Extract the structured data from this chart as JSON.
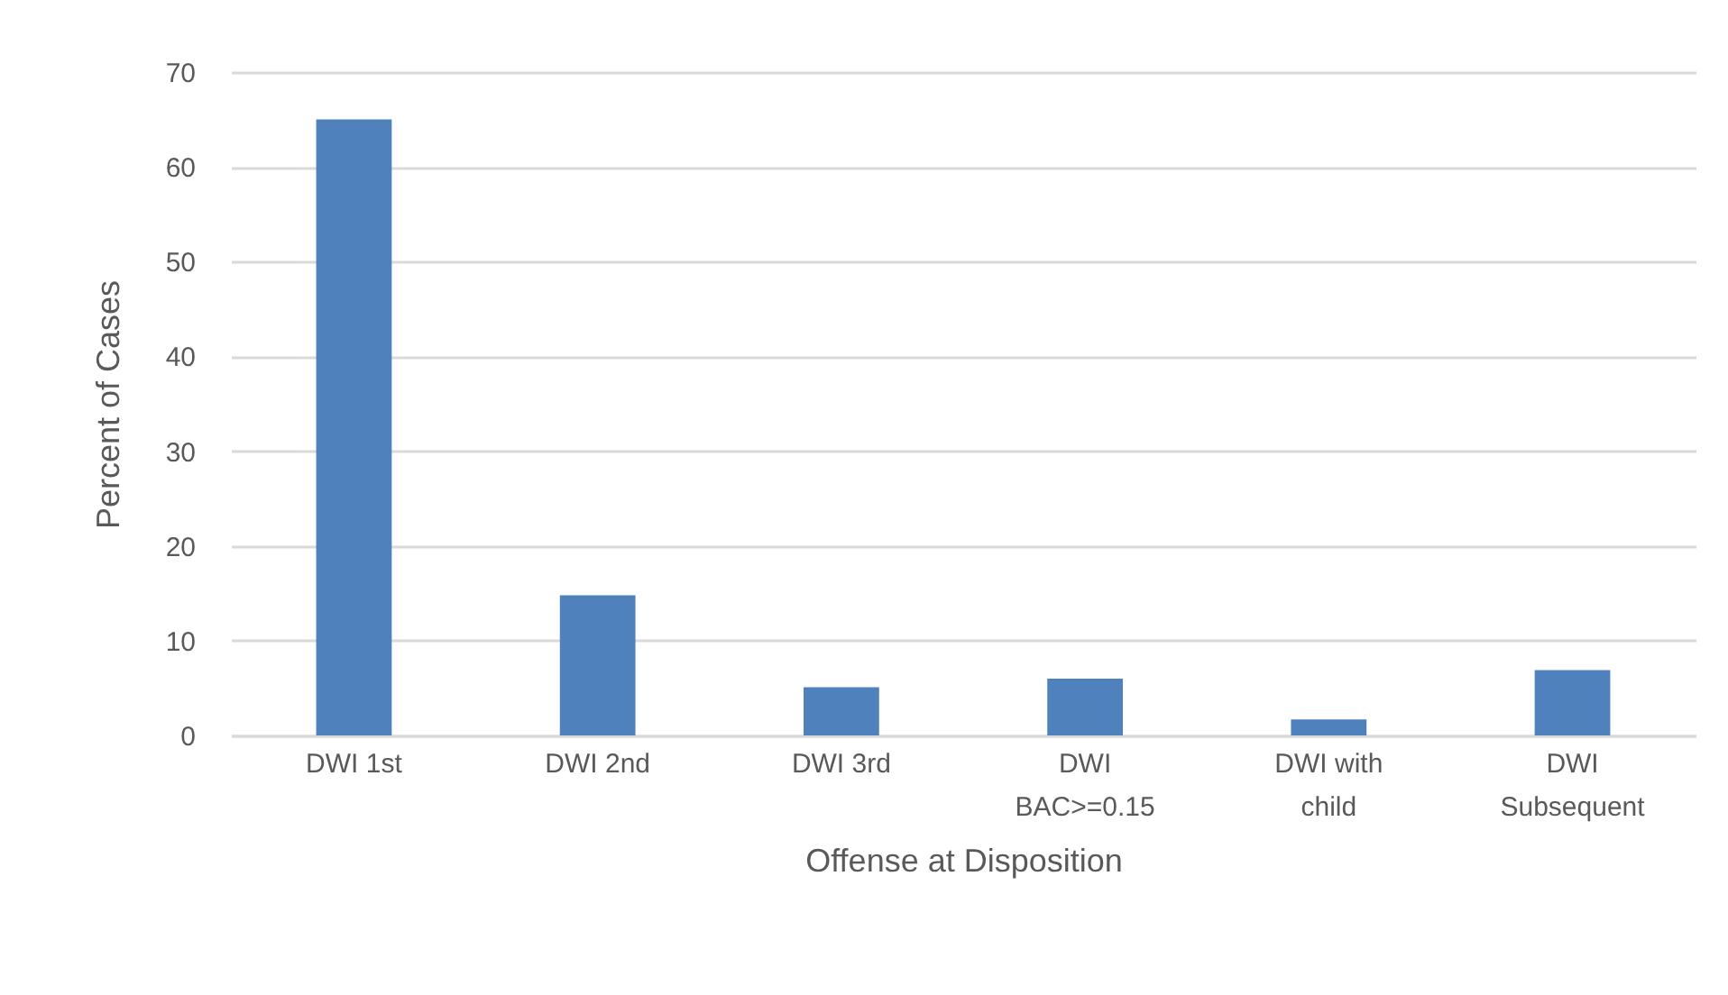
{
  "chart_data": {
    "type": "bar",
    "xlabel": "Offense at Disposition",
    "ylabel": "Percent of Cases",
    "categories": [
      "DWI 1st",
      "DWI 2nd",
      "DWI 3rd",
      "DWI BAC>=0.15",
      "DWI with child",
      "DWI Subsequent"
    ],
    "values": [
      65.0,
      14.8,
      5.1,
      6.0,
      1.7,
      6.9
    ],
    "color": "#4f81bd",
    "ylim": [
      0,
      70
    ],
    "yticks": [
      0,
      10,
      20,
      30,
      40,
      50,
      60,
      70
    ],
    "grid": "y"
  }
}
